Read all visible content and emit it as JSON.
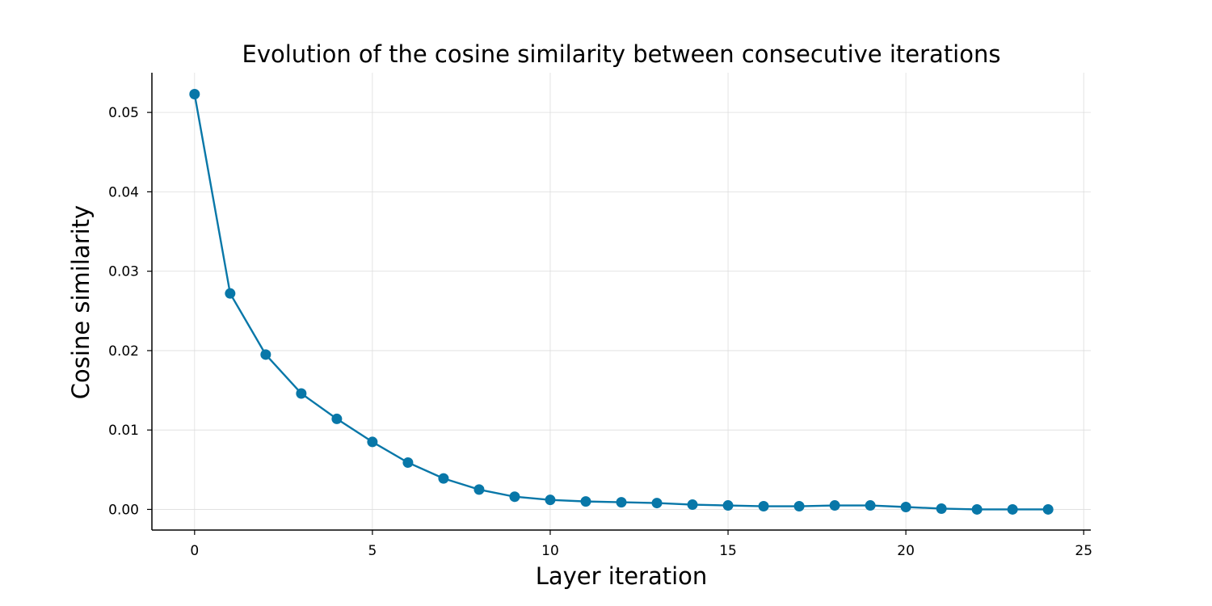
{
  "chart_data": {
    "type": "line",
    "title": "Evolution of the cosine similarity between consecutive iterations",
    "xlabel": "Layer iteration",
    "ylabel": "Cosine similarity",
    "xlim": [
      -1.2,
      25.2
    ],
    "ylim": [
      -0.0026,
      0.055
    ],
    "x_ticks": [
      0,
      5,
      10,
      15,
      20,
      25
    ],
    "x_tick_labels": [
      "0",
      "5",
      "10",
      "15",
      "20",
      "25"
    ],
    "y_ticks": [
      0.0,
      0.01,
      0.02,
      0.03,
      0.04,
      0.05
    ],
    "y_tick_labels": [
      "0.00",
      "0.01",
      "0.02",
      "0.03",
      "0.04",
      "0.05"
    ],
    "grid": true,
    "series": [
      {
        "color": "#0877a8",
        "marker": "circle",
        "x": [
          0,
          1,
          2,
          3,
          4,
          5,
          6,
          7,
          8,
          9,
          10,
          11,
          12,
          13,
          14,
          15,
          16,
          17,
          18,
          19,
          20,
          21,
          22,
          23,
          24
        ],
        "values": [
          0.0523,
          0.0272,
          0.0195,
          0.0146,
          0.0114,
          0.0085,
          0.0059,
          0.0039,
          0.0025,
          0.0016,
          0.0012,
          0.001,
          0.0009,
          0.0008,
          0.0006,
          0.0005,
          0.0004,
          0.0004,
          0.0005,
          0.0005,
          0.0003,
          0.0001,
          0.0,
          0.0,
          0.0
        ]
      }
    ]
  }
}
